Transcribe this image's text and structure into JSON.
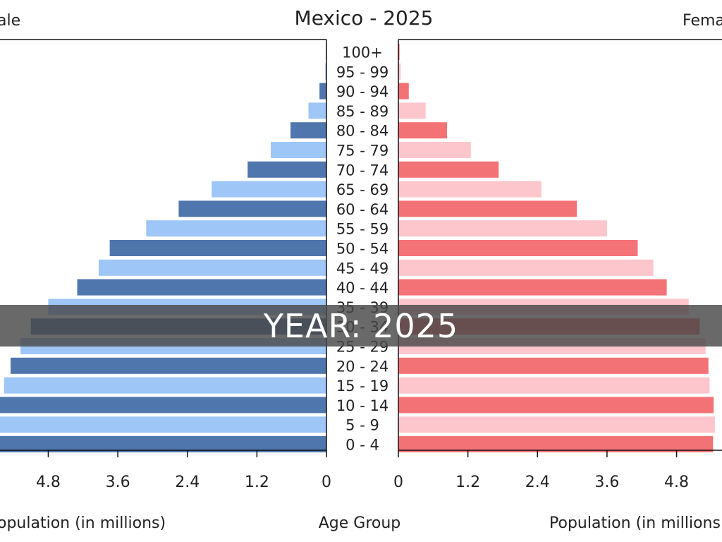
{
  "overlay": {
    "banner_text": "YEAR: 2025"
  },
  "chart_data": {
    "type": "bar",
    "title": "Mexico - 2025",
    "left_label": "ale",
    "right_label": "Fema",
    "xlabel_left": "opulation (in millions)",
    "xlabel_center": "Age Group",
    "xlabel_right": "Population (in millions",
    "x_ticks_left": [
      "4.8",
      "3.6",
      "2.4",
      "1.2",
      "0"
    ],
    "x_ticks_right": [
      "0",
      "1.2",
      "2.4",
      "3.6",
      "4.8"
    ],
    "xlim": [
      0,
      6.0
    ],
    "categories": [
      "100+",
      "95 - 99",
      "90 - 94",
      "85 - 89",
      "80 - 84",
      "75 - 79",
      "70 - 74",
      "65 - 69",
      "60 - 64",
      "55 - 59",
      "50 - 54",
      "45 - 49",
      "40 - 44",
      "35 - 39",
      "30 - 34",
      "25 - 29",
      "20 - 24",
      "15 - 19",
      "10 - 14",
      "5 - 9",
      "0 - 4"
    ],
    "series": [
      {
        "name": "Male",
        "values": [
          0.01,
          0.02,
          0.12,
          0.31,
          0.62,
          0.96,
          1.36,
          1.98,
          2.55,
          3.11,
          3.74,
          3.93,
          4.3,
          4.8,
          5.1,
          5.28,
          5.45,
          5.56,
          5.7,
          5.72,
          5.75
        ]
      },
      {
        "name": "Female",
        "values": [
          0.02,
          0.04,
          0.18,
          0.47,
          0.84,
          1.25,
          1.73,
          2.47,
          3.08,
          3.6,
          4.13,
          4.4,
          4.63,
          5.01,
          5.2,
          5.3,
          5.35,
          5.37,
          5.44,
          5.46,
          5.43
        ]
      }
    ],
    "colors": {
      "male_dark": "#4f76ad",
      "male_light": "#9ec6f6",
      "female_dark": "#f37276",
      "female_light": "#fdc5cc",
      "axis": "#111111"
    }
  }
}
